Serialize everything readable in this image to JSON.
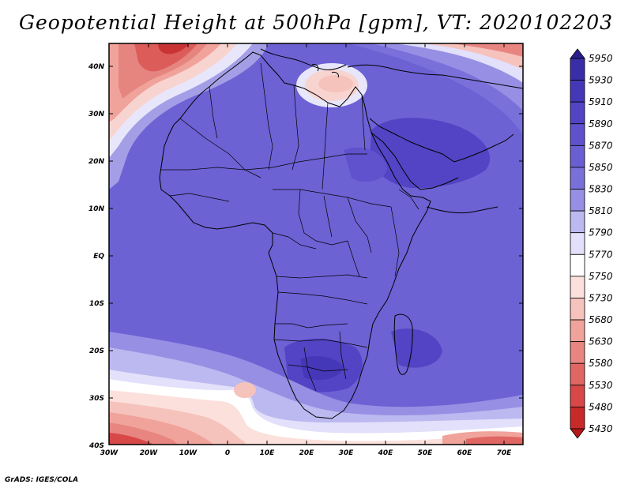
{
  "title": "Geopotential Height at 500hPa [gpm], VT: 2020102203",
  "footer": "GrADS: IGES/COLA",
  "map": {
    "lat_ticks": [
      "40N",
      "30N",
      "20N",
      "10N",
      "EQ",
      "10S",
      "20S",
      "30S",
      "40S"
    ],
    "lon_ticks": [
      "30W",
      "20W",
      "10W",
      "0",
      "10E",
      "20E",
      "30E",
      "40E",
      "50E",
      "60E",
      "70E"
    ]
  },
  "colorbar": {
    "levels": [
      "5950",
      "5930",
      "5910",
      "5890",
      "5870",
      "5850",
      "5830",
      "5810",
      "5790",
      "5770",
      "5750",
      "5730",
      "5680",
      "5630",
      "5580",
      "5530",
      "5480",
      "5430"
    ],
    "colors": [
      "#2a1e90",
      "#3a2ea8",
      "#4538b8",
      "#5244c4",
      "#5f52cc",
      "#6a5fd2",
      "#7a70da",
      "#968fe4",
      "#bcb8f0",
      "#e2e0fa",
      "#ffffff",
      "#fbe0dc",
      "#f6c2bc",
      "#f0a39b",
      "#e88580",
      "#e06663",
      "#d84848",
      "#c82a2a",
      "#b41818"
    ]
  }
}
